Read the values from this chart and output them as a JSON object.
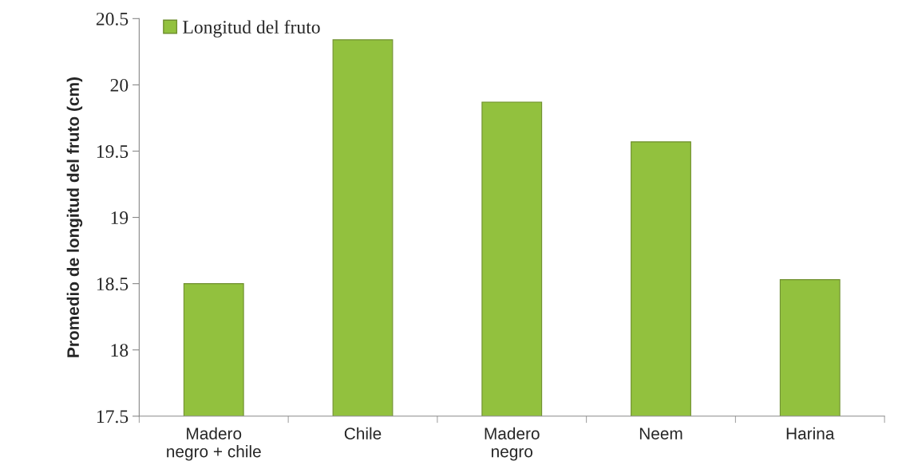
{
  "chart_data": {
    "type": "bar",
    "ylabel": "Promedio de longitud del fruto (cm)",
    "categories": [
      "Madero\nnegro + chile",
      "Chile",
      "Madero\nnegro",
      "Neem",
      "Harina"
    ],
    "series": [
      {
        "name": "Longitud del fruto",
        "color": "#92c13e",
        "values": [
          18.5,
          20.34,
          19.87,
          19.57,
          18.53
        ]
      }
    ],
    "ylim": [
      17.5,
      20.5
    ],
    "yticks": [
      17.5,
      18,
      18.5,
      19,
      19.5,
      20,
      20.5
    ],
    "grid": false,
    "legend": "top left"
  }
}
